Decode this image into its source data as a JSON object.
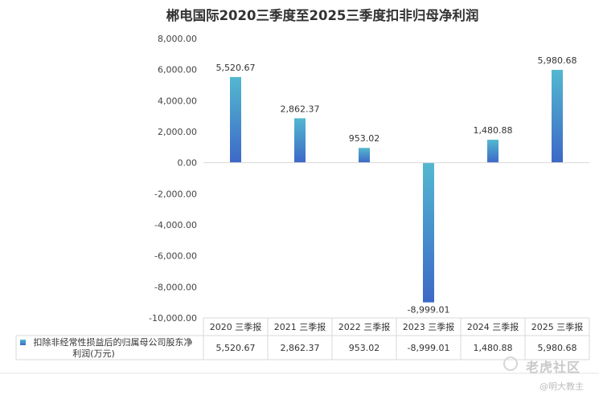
{
  "chart_data": {
    "type": "bar",
    "title": "郴电国际2020三季度至2025三季度扣非归母净利润",
    "categories": [
      "2020 三季报",
      "2021 三季报",
      "2022 三季报",
      "2023 三季报",
      "2024 三季报",
      "2025 三季报"
    ],
    "series": [
      {
        "name": "扣除非经常性损益后的归属母公司股东净利润(万元)",
        "values": [
          5520.67,
          2862.37,
          953.02,
          -8999.01,
          1480.88,
          5980.68
        ],
        "labels": [
          "5,520.67",
          "2,862.37",
          "953.02",
          "-8,999.01",
          "1,480.88",
          "5,980.68"
        ]
      }
    ],
    "ylim": [
      -10000,
      8000
    ],
    "yticks": [
      "8,000.00",
      "6,000.00",
      "4,000.00",
      "2,000.00",
      "0.00",
      "-2,000.00",
      "-4,000.00",
      "-6,000.00",
      "-8,000.00",
      "-10,000.00"
    ],
    "ytick_values": [
      8000,
      6000,
      4000,
      2000,
      0,
      -2000,
      -4000,
      -6000,
      -8000,
      -10000
    ],
    "legend_placement": "data-table",
    "bar_colors": [
      "#53b8d0",
      "#3d68c7"
    ],
    "grid": false
  },
  "watermark": {
    "brand": "老虎社区",
    "user": "@明大教主"
  }
}
